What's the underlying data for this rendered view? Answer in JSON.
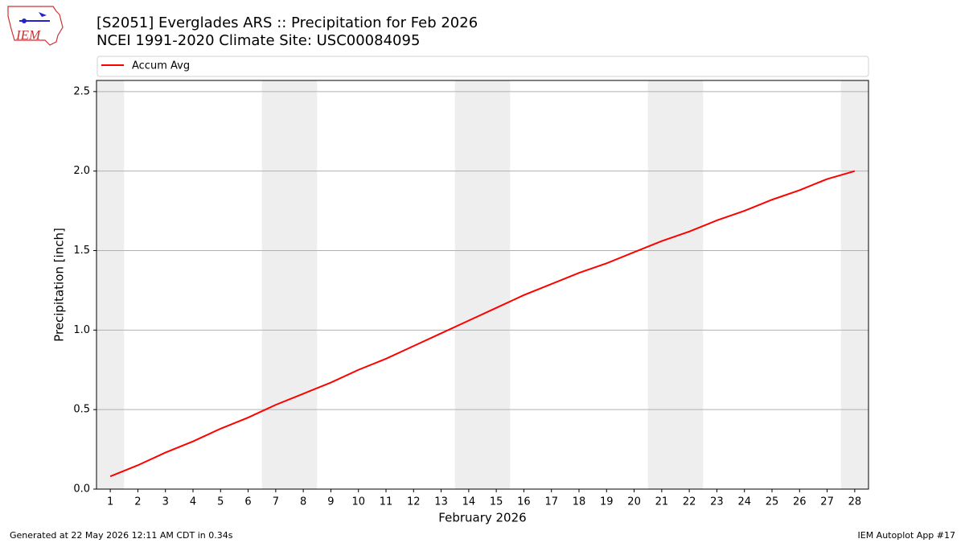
{
  "chart_data": {
    "type": "line",
    "title": "[S2051] Everglades ARS :: Precipitation for Feb 2026",
    "subtitle": "NCEI 1991-2020 Climate Site: USC00084095",
    "xlabel": "February 2026",
    "ylabel": "Precipitation [inch]",
    "x": [
      1,
      2,
      3,
      4,
      5,
      6,
      7,
      8,
      9,
      10,
      11,
      12,
      13,
      14,
      15,
      16,
      17,
      18,
      19,
      20,
      21,
      22,
      23,
      24,
      25,
      26,
      27,
      28
    ],
    "series": [
      {
        "name": "Accum Avg",
        "color": "#ff0000",
        "values": [
          0.08,
          0.15,
          0.23,
          0.3,
          0.38,
          0.45,
          0.53,
          0.6,
          0.67,
          0.75,
          0.82,
          0.9,
          0.98,
          1.06,
          1.14,
          1.22,
          1.29,
          1.36,
          1.42,
          1.49,
          1.56,
          1.62,
          1.69,
          1.75,
          1.82,
          1.88,
          1.95,
          2.0
        ]
      }
    ],
    "xlim": [
      0.5,
      28.5
    ],
    "xticks": [
      1,
      2,
      3,
      4,
      5,
      6,
      7,
      8,
      9,
      10,
      11,
      12,
      13,
      14,
      15,
      16,
      17,
      18,
      19,
      20,
      21,
      22,
      23,
      24,
      25,
      26,
      27,
      28
    ],
    "ylim": [
      0,
      2.57
    ],
    "yticks": [
      {
        "value": 0,
        "label": "0.0"
      },
      0.5,
      {
        "value": 1,
        "label": "1.0"
      },
      1.5,
      {
        "value": 2,
        "label": "2.0"
      },
      2.5
    ],
    "grid": true,
    "shaded_days": [
      1,
      7,
      8,
      14,
      15,
      21,
      22,
      28
    ],
    "shade_color": "#eeeeee",
    "legend": "top"
  },
  "logo": {
    "text": "IEM"
  },
  "footer": {
    "left": "Generated at 22 May 2026 12:11 AM CDT in 0.34s",
    "right": "IEM Autoplot App #17"
  }
}
